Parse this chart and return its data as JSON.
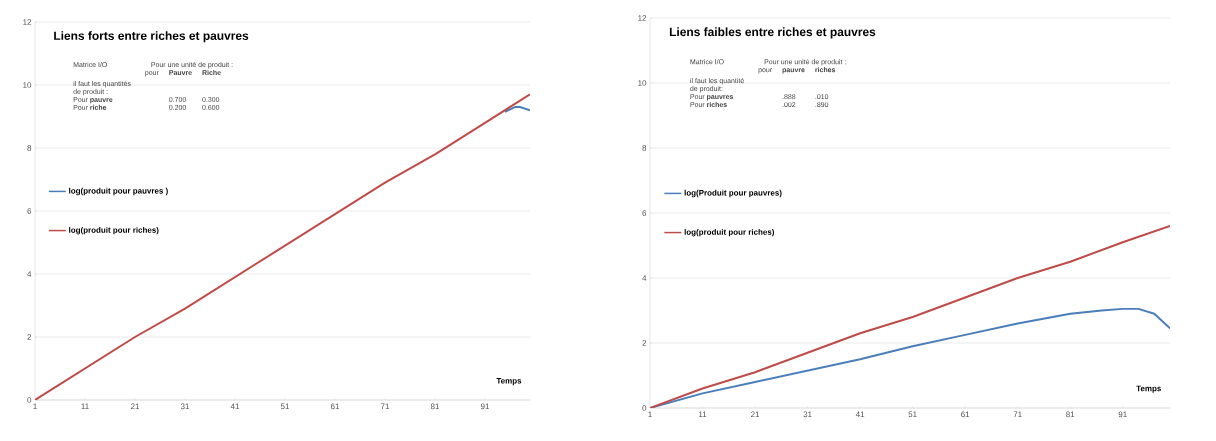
{
  "chart_data": [
    {
      "type": "line",
      "title": "Liens forts entre riches et pauvres",
      "xlabel": "Temps",
      "annotations": [
        "Matrice I/O",
        "Pour une unité de produit :",
        "pour",
        "**Pauvre**",
        "**Riche**",
        "il faut les quantités",
        "de produit :",
        "Pour **pauvre**",
        "0.700",
        "0.300",
        "Pour **riche**",
        "0.200",
        "0.600"
      ],
      "xlim": [
        1,
        100
      ],
      "xticks": [
        1,
        11,
        21,
        31,
        41,
        51,
        61,
        71,
        81,
        91
      ],
      "ylim": [
        0,
        12
      ],
      "yticks": [
        0,
        2,
        4,
        6,
        8,
        10,
        12
      ],
      "grid": "y",
      "legend": "left",
      "series": [
        {
          "name": "log(produit pour pauvres )",
          "color": "#4a7ebb",
          "x": [
            95,
            97,
            98,
            100
          ],
          "values": [
            9.15,
            9.3,
            9.3,
            9.2
          ]
        },
        {
          "name": "log(produit pour riches)",
          "color": "#be4b48",
          "x": [
            1,
            11,
            21,
            31,
            41,
            51,
            61,
            71,
            81,
            91,
            100
          ],
          "values": [
            0,
            1.0,
            2.0,
            2.9,
            3.9,
            4.9,
            5.9,
            6.9,
            7.8,
            8.8,
            9.7
          ]
        }
      ]
    },
    {
      "type": "line",
      "title": "Liens faibles entre riches et pauvres",
      "xlabel": "Temps",
      "annotations": [
        "Matrice I/O",
        "Pour une unité de produit :",
        "pour",
        "**pauvre**",
        "**riches**",
        "il faut les quantité",
        "de produit:",
        "Pour **pauvres**",
        ".888",
        ".010",
        "Pour **riches**",
        ".002",
        ".890"
      ],
      "xlim": [
        1,
        100
      ],
      "xticks": [
        1,
        11,
        21,
        31,
        41,
        51,
        61,
        71,
        81,
        91
      ],
      "ylim": [
        0,
        12
      ],
      "yticks": [
        0,
        2,
        4,
        6,
        8,
        10,
        12
      ],
      "grid": "y",
      "legend": "left",
      "series": [
        {
          "name": "log(Produit pour pauvres)",
          "color": "#4a7ebb",
          "x": [
            1,
            11,
            21,
            31,
            41,
            51,
            61,
            71,
            81,
            87,
            91,
            94,
            97,
            100
          ],
          "values": [
            0,
            0.45,
            0.8,
            1.15,
            1.5,
            1.9,
            2.25,
            2.6,
            2.9,
            3.0,
            3.05,
            3.05,
            2.9,
            2.45
          ]
        },
        {
          "name": "log(produit pour riches)",
          "color": "#be4b48",
          "x": [
            1,
            11,
            21,
            31,
            41,
            51,
            61,
            71,
            81,
            91,
            100
          ],
          "values": [
            0,
            0.6,
            1.1,
            1.7,
            2.3,
            2.8,
            3.4,
            4.0,
            4.5,
            5.1,
            5.6
          ]
        }
      ]
    }
  ]
}
